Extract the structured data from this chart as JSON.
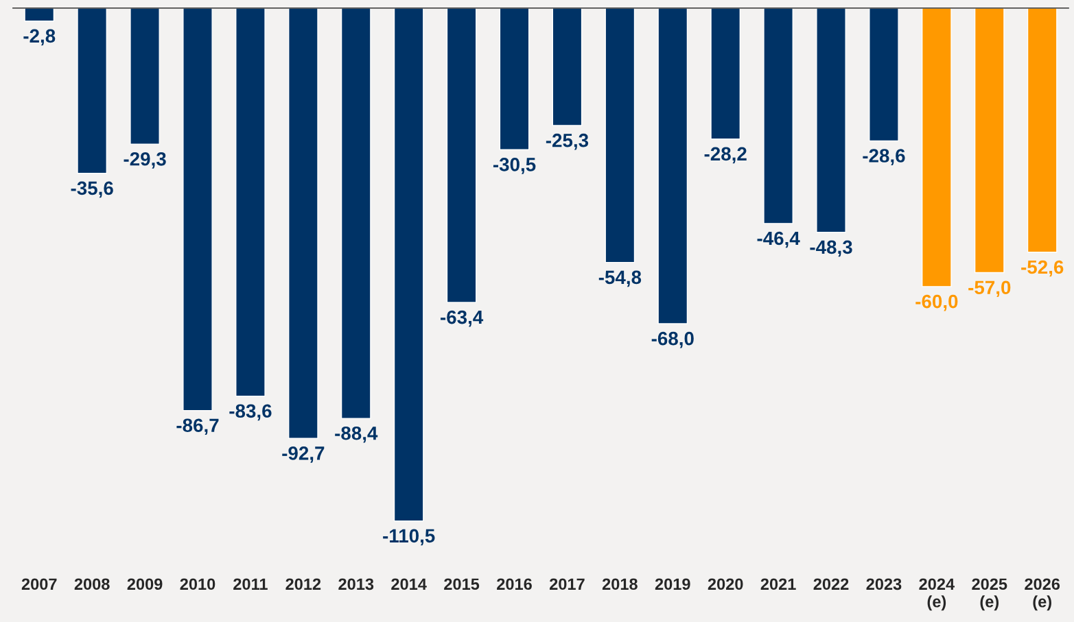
{
  "chart_data": {
    "type": "bar",
    "categories": [
      "2007",
      "2008",
      "2009",
      "2010",
      "2011",
      "2012",
      "2013",
      "2014",
      "2015",
      "2016",
      "2017",
      "2018",
      "2019",
      "2020",
      "2021",
      "2022",
      "2023",
      "2024\n(e)",
      "2025\n(e)",
      "2026\n(e)"
    ],
    "values": [
      -2.8,
      -35.6,
      -29.3,
      -86.7,
      -83.6,
      -92.7,
      -88.4,
      -110.5,
      -63.4,
      -30.5,
      -25.3,
      -54.8,
      -68.0,
      -28.2,
      -46.4,
      -48.3,
      -28.6,
      -60.0,
      -57.0,
      -52.6
    ],
    "value_labels": [
      "-2,8",
      "-35,6",
      "-29,3",
      "-86,7",
      "-83,6",
      "-92,7",
      "-88,4",
      "-110,5",
      "-63,4",
      "-30,5",
      "-25,3",
      "-54,8",
      "-68,0",
      "-28,2",
      "-46,4",
      "-48,3",
      "-28,6",
      "-60,0",
      "-57,0",
      "-52,6"
    ],
    "colors": [
      "#003366",
      "#003366",
      "#003366",
      "#003366",
      "#003366",
      "#003366",
      "#003366",
      "#003366",
      "#003366",
      "#003366",
      "#003366",
      "#003366",
      "#003366",
      "#003366",
      "#003366",
      "#003366",
      "#003366",
      "#ff9900",
      "#ff9900",
      "#ff9900"
    ],
    "tick_labels": "x",
    "grid": false
  }
}
